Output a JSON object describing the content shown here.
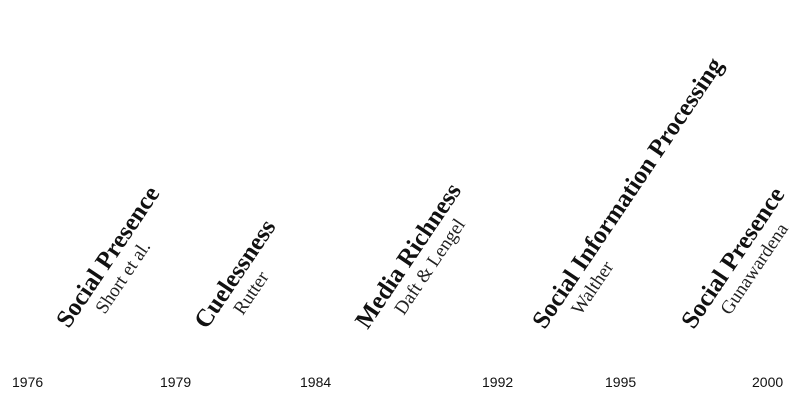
{
  "timeline": {
    "theories": [
      {
        "name": "Social Presence",
        "author": "Short et al."
      },
      {
        "name": "Cuelessness",
        "author": "Rutter"
      },
      {
        "name": "Media Richness",
        "author": "Daft & Lengel"
      },
      {
        "name": "Social Information Processing",
        "author": "Walther"
      },
      {
        "name": "Social Presence",
        "author": "Gunawardena"
      }
    ],
    "years": [
      "1976",
      "1979",
      "1984",
      "1992",
      "1995",
      "2000"
    ]
  }
}
